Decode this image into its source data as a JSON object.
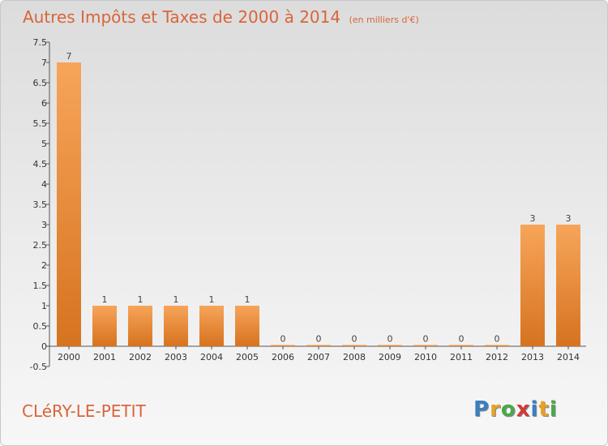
{
  "header": {
    "title": "Autres Impôts et Taxes de 2000 à 2014",
    "unit": "(en milliers d'€)"
  },
  "footer": {
    "commune": "CLéRY-LE-PETIT",
    "logo_letters": [
      "P",
      "r",
      "o",
      "x",
      "i",
      "t",
      "i"
    ],
    "logo_colors": [
      "#3a7fc1",
      "#e8a02a",
      "#4aa84a",
      "#d03a3a",
      "#3a7fc1",
      "#e8a02a",
      "#4aa84a"
    ]
  },
  "chart_data": {
    "type": "bar",
    "categories": [
      "2000",
      "2001",
      "2002",
      "2003",
      "2004",
      "2005",
      "2006",
      "2007",
      "2008",
      "2009",
      "2010",
      "2011",
      "2012",
      "2013",
      "2014"
    ],
    "values": [
      7,
      1,
      1,
      1,
      1,
      1,
      0,
      0,
      0,
      0,
      0,
      0,
      0,
      3,
      3
    ],
    "data_labels": [
      "7",
      "1",
      "1",
      "1",
      "1",
      "1",
      "0",
      "0",
      "0",
      "0",
      "0",
      "0",
      "0",
      "3",
      "3"
    ],
    "yticks": [
      "7.5",
      "7",
      "6.5",
      "6",
      "5.5",
      "5",
      "4.5",
      "4",
      "3.5",
      "3",
      "2.5",
      "2",
      "1.5",
      "1",
      "0.5",
      "0",
      "-0.5"
    ],
    "ylim": [
      -0.5,
      7.5
    ],
    "grid": false,
    "bar_color_light": "#f7a55a",
    "bar_color_dark": "#d6731f",
    "axis_color": "#555555"
  }
}
